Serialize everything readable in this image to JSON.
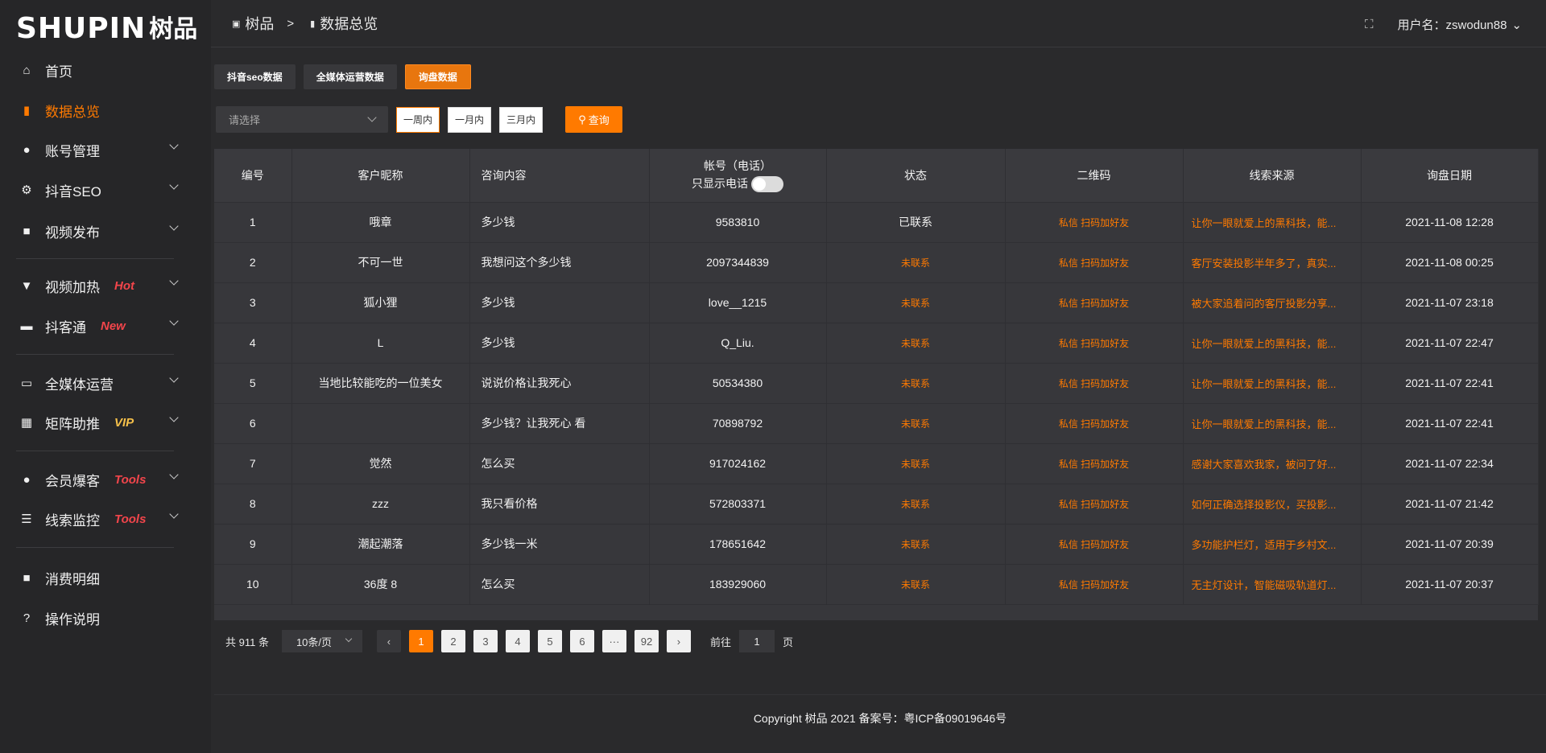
{
  "brand": {
    "logo_en": "SHUPIN",
    "logo_cn": "树品"
  },
  "sidebar": {
    "items": [
      {
        "label": "首页",
        "icon": "home-icon",
        "glyph": "⌂",
        "active": false
      },
      {
        "label": "数据总览",
        "icon": "bar-chart-icon",
        "glyph": "▮",
        "active": true
      },
      {
        "label": "账号管理",
        "icon": "user-icon",
        "glyph": "●",
        "chevron": true
      },
      {
        "label": "抖音SEO",
        "icon": "gear-icon",
        "glyph": "⚙",
        "chevron": true
      },
      {
        "label": "视频发布",
        "icon": "camera-icon",
        "glyph": "■",
        "chevron": true
      },
      {
        "label": "视频加热",
        "icon": "board-icon",
        "glyph": "▼",
        "chevron": true,
        "tag": "Hot"
      },
      {
        "label": "抖客通",
        "icon": "chat-icon",
        "glyph": "▬",
        "chevron": true,
        "tag": "New"
      },
      {
        "label": "全媒体运营",
        "icon": "monitor-icon",
        "glyph": "▭",
        "chevron": true
      },
      {
        "label": "矩阵助推",
        "icon": "grid-icon",
        "glyph": "▦",
        "chevron": true,
        "tag": "VIP"
      },
      {
        "label": "会员爆客",
        "icon": "user-icon",
        "glyph": "●",
        "chevron": true,
        "tag": "Tools"
      },
      {
        "label": "线索监控",
        "icon": "sliders-icon",
        "glyph": "☰",
        "chevron": true,
        "tag": "Tools"
      },
      {
        "label": "消费明细",
        "icon": "wallet-icon",
        "glyph": "■"
      },
      {
        "label": "操作说明",
        "icon": "help-icon",
        "glyph": "?"
      }
    ]
  },
  "header": {
    "crumbs": [
      "树品",
      "数据总览"
    ],
    "user_label": "用户名：zswodun88"
  },
  "tabs": [
    {
      "label": "抖音seo数据"
    },
    {
      "label": "全媒体运营数据"
    },
    {
      "label": "询盘数据",
      "active": true
    }
  ],
  "filters": {
    "select_placeholder": "请选择",
    "ranges": [
      "一周内",
      "一月内",
      "三月内"
    ],
    "query": "查询"
  },
  "table": {
    "headers": [
      "编号",
      "客户昵称",
      "咨询内容",
      "帐号（电话）",
      "状态",
      "二维码",
      "线索来源",
      "询盘日期"
    ],
    "phone_toggle_label": "只显示电话",
    "rows": [
      [
        "1",
        "哦章",
        "多少钱",
        "9583810",
        "已联系",
        "私信 扫码加好友",
        "让你一眼就爱上的黑科技，能...",
        "2021-11-08 12:28"
      ],
      [
        "2",
        "不可一世",
        "我想问这个多少钱",
        "2097344839",
        "未联系",
        "私信 扫码加好友",
        "客厅安装投影半年多了，真实...",
        "2021-11-08 00:25"
      ],
      [
        "3",
        "狐小狸",
        "多少钱",
        "love__1215",
        "未联系",
        "私信 扫码加好友",
        "被大家追着问的客厅投影分享...",
        "2021-11-07 23:18"
      ],
      [
        "4",
        "L",
        "多少钱",
        "Q_Liu.",
        "未联系",
        "私信 扫码加好友",
        "让你一眼就爱上的黑科技，能...",
        "2021-11-07 22:47"
      ],
      [
        "5",
        "当地比较能吃的一位美女",
        "说说价格让我死心",
        "50534380",
        "未联系",
        "私信 扫码加好友",
        "让你一眼就爱上的黑科技，能...",
        "2021-11-07 22:41"
      ],
      [
        "6",
        "",
        "多少钱？让我死心 看",
        "70898792",
        "未联系",
        "私信 扫码加好友",
        "让你一眼就爱上的黑科技，能...",
        "2021-11-07 22:41"
      ],
      [
        "7",
        "觉然",
        "怎么买",
        "917024162",
        "未联系",
        "私信 扫码加好友",
        "感谢大家喜欢我家，被问了好...",
        "2021-11-07 22:34"
      ],
      [
        "8",
        "zzz",
        "我只看价格",
        "572803371",
        "未联系",
        "私信 扫码加好友",
        "如何正确选择投影仪，买投影...",
        "2021-11-07 21:42"
      ],
      [
        "9",
        "潮起潮落",
        "多少钱一米",
        "178651642",
        "未联系",
        "私信 扫码加好友",
        "多功能护栏灯，适用于乡村文...",
        "2021-11-07 20:39"
      ],
      [
        "10",
        "36度 8",
        "怎么买",
        "183929060",
        "未联系",
        "私信 扫码加好友",
        "无主灯设计，智能磁吸轨道灯...",
        "2021-11-07 20:37"
      ]
    ]
  },
  "pagination": {
    "total": "共 911 条",
    "page_size": "10条/页",
    "pages": [
      "1",
      "2",
      "3",
      "4",
      "5",
      "6",
      "···",
      "92"
    ],
    "current": "1",
    "goto_label": "前往",
    "goto_value": "1",
    "page_unit": "页"
  },
  "footer": {
    "copyright": "Copyright 树品 2021 备案号：粤ICP备09019646号"
  },
  "colors": {
    "accent": "#ff7a00",
    "tag_red": "#f2454b",
    "tag_vip": "#f5c04a"
  }
}
